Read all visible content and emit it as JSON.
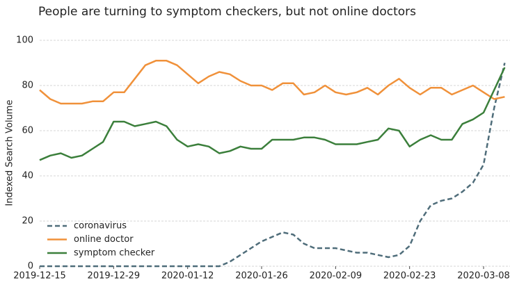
{
  "chart_data": {
    "type": "line",
    "title": "People are turning to symptom checkers, but not online doctors",
    "y_label": "Indexed Search Volume",
    "x": [
      "2019-12-15",
      "2019-12-17",
      "2019-12-19",
      "2019-12-21",
      "2019-12-23",
      "2019-12-25",
      "2019-12-27",
      "2019-12-29",
      "2019-12-31",
      "2020-01-02",
      "2020-01-04",
      "2020-01-06",
      "2020-01-08",
      "2020-01-10",
      "2020-01-12",
      "2020-01-14",
      "2020-01-16",
      "2020-01-18",
      "2020-01-20",
      "2020-01-22",
      "2020-01-24",
      "2020-01-26",
      "2020-01-28",
      "2020-01-30",
      "2020-02-01",
      "2020-02-03",
      "2020-02-05",
      "2020-02-07",
      "2020-02-09",
      "2020-02-11",
      "2020-02-13",
      "2020-02-15",
      "2020-02-17",
      "2020-02-19",
      "2020-02-21",
      "2020-02-23",
      "2020-02-25",
      "2020-02-27",
      "2020-02-29",
      "2020-03-02",
      "2020-03-04",
      "2020-03-06",
      "2020-03-08",
      "2020-03-10",
      "2020-03-12"
    ],
    "series": [
      {
        "name": "coronavirus",
        "color": "#4f6d7a",
        "dashed": true,
        "values": [
          0,
          0,
          0,
          0,
          0,
          0,
          0,
          0,
          0,
          0,
          0,
          0,
          0,
          0,
          0,
          0,
          0,
          0,
          2,
          5,
          8,
          11,
          13,
          15,
          14,
          10,
          8,
          8,
          8,
          7,
          6,
          6,
          5,
          4,
          5,
          9,
          20,
          27,
          29,
          30,
          33,
          37,
          45,
          70,
          90
        ]
      },
      {
        "name": "online doctor",
        "color": "#f0913a",
        "dashed": false,
        "values": [
          78,
          74,
          72,
          72,
          72,
          73,
          73,
          77,
          77,
          83,
          89,
          91,
          91,
          89,
          85,
          81,
          84,
          86,
          85,
          82,
          80,
          80,
          78,
          81,
          81,
          76,
          77,
          80,
          77,
          76,
          77,
          79,
          76,
          80,
          83,
          79,
          76,
          79,
          79,
          76,
          78,
          80,
          77,
          74,
          75
        ]
      },
      {
        "name": "symptom checker",
        "color": "#3b7f3b",
        "dashed": false,
        "values": [
          47,
          49,
          50,
          48,
          49,
          52,
          55,
          64,
          64,
          62,
          63,
          64,
          62,
          56,
          53,
          54,
          53,
          50,
          51,
          53,
          52,
          52,
          56,
          56,
          56,
          57,
          57,
          56,
          54,
          54,
          54,
          55,
          56,
          61,
          60,
          53,
          56,
          58,
          56,
          56,
          63,
          65,
          68,
          78,
          88
        ]
      }
    ],
    "xlim": [
      "2019-12-15",
      "2020-03-13"
    ],
    "xticks": [
      "2019-12-15",
      "2019-12-29",
      "2020-01-12",
      "2020-01-26",
      "2020-02-09",
      "2020-02-23",
      "2020-03-08"
    ],
    "ylim": [
      0,
      100
    ],
    "yticks": [
      0,
      20,
      40,
      60,
      80,
      100
    ],
    "grid": true,
    "legend": "lower left"
  }
}
